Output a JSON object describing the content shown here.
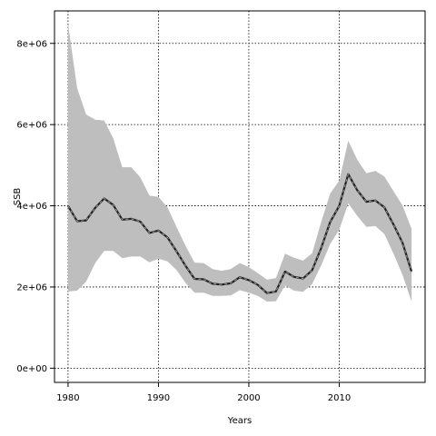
{
  "chart_data": {
    "type": "area",
    "title": "",
    "xlabel": "Years",
    "ylabel": "SSB",
    "xlim": [
      1978.5,
      2019.5
    ],
    "ylim": [
      -350000,
      8800000
    ],
    "x_ticks": [
      1980,
      1990,
      2000,
      2010
    ],
    "x_tick_labels": [
      "1980",
      "1990",
      "2000",
      "2010"
    ],
    "y_ticks": [
      0,
      2000000,
      4000000,
      6000000,
      8000000
    ],
    "y_tick_labels": [
      "0e+00",
      "2e+06",
      "4e+06",
      "6e+06",
      "8e+06"
    ],
    "grid": true,
    "band_color": "#bebebe",
    "line_color": "#222222",
    "x": [
      1980,
      1981,
      1982,
      1983,
      1984,
      1985,
      1986,
      1987,
      1988,
      1989,
      1990,
      1991,
      1992,
      1993,
      1994,
      1995,
      1996,
      1997,
      1998,
      1999,
      2000,
      2001,
      2002,
      2003,
      2004,
      2005,
      2006,
      2007,
      2008,
      2009,
      2010,
      2011,
      2012,
      2013,
      2014,
      2015,
      2016,
      2017,
      2018
    ],
    "series": [
      {
        "values": [
          4000000,
          3620000,
          3640000,
          3950000,
          4180000,
          4020000,
          3660000,
          3680000,
          3610000,
          3330000,
          3390000,
          3220000,
          2880000,
          2520000,
          2200000,
          2190000,
          2080000,
          2060000,
          2090000,
          2240000,
          2170000,
          2050000,
          1850000,
          1890000,
          2380000,
          2250000,
          2210000,
          2410000,
          2960000,
          3600000,
          4000000,
          4780000,
          4380000,
          4100000,
          4130000,
          3960000,
          3540000,
          3090000,
          2380000
        ]
      }
    ],
    "band_upper": [
      8480000,
      6900000,
      6250000,
      6120000,
      6100000,
      5660000,
      4950000,
      4950000,
      4700000,
      4250000,
      4220000,
      3960000,
      3480000,
      3010000,
      2600000,
      2590000,
      2440000,
      2400000,
      2440000,
      2590000,
      2490000,
      2340000,
      2180000,
      2220000,
      2820000,
      2720000,
      2650000,
      2830000,
      3600000,
      4300000,
      4620000,
      5600000,
      5130000,
      4800000,
      4860000,
      4720000,
      4360000,
      4010000,
      3430000
    ],
    "band_lower": [
      1890000,
      1910000,
      2130000,
      2590000,
      2890000,
      2890000,
      2710000,
      2750000,
      2750000,
      2610000,
      2700000,
      2630000,
      2420000,
      2100000,
      1860000,
      1860000,
      1780000,
      1780000,
      1790000,
      1920000,
      1860000,
      1780000,
      1640000,
      1650000,
      2040000,
      1910000,
      1880000,
      2070000,
      2530000,
      3060000,
      3410000,
      4060000,
      3750000,
      3480000,
      3500000,
      3300000,
      2820000,
      2300000,
      1640000
    ]
  }
}
